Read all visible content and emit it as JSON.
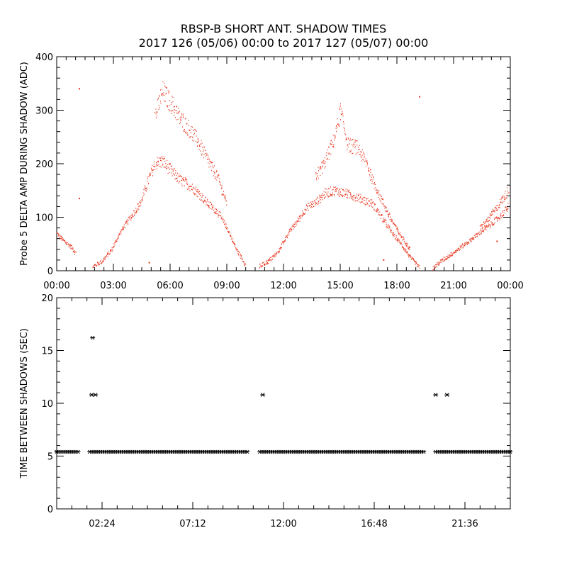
{
  "header": {
    "title": "RBSP-B SHORT ANT. SHADOW TIMES",
    "subtitle": "2017 126 (05/06) 00:00 to 2017 127 (05/07) 00:00"
  },
  "chart_data": [
    {
      "type": "scatter",
      "ylabel": "Probe 5 DELTA AMP DURING SHADOW (ADC)",
      "xlabel": "",
      "x_unit": "hours",
      "xlim": [
        0,
        24
      ],
      "ylim": [
        0,
        400
      ],
      "yticks": [
        0,
        100,
        200,
        300,
        400
      ],
      "xticks": [
        0,
        3,
        6,
        9,
        12,
        15,
        18,
        21,
        24
      ],
      "xtick_labels": [
        "00:00",
        "03:00",
        "06:00",
        "09:00",
        "12:00",
        "15:00",
        "18:00",
        "21:00",
        "00:00"
      ],
      "color": "#e8341c",
      "series": [
        {
          "values": [
            [
              0.0,
              70
            ],
            [
              0.25,
              60
            ],
            [
              0.5,
              52
            ],
            [
              0.75,
              45
            ],
            [
              1.0,
              32
            ],
            [
              1.9,
              8
            ],
            [
              2.4,
              18
            ],
            [
              2.9,
              40
            ],
            [
              3.4,
              75
            ],
            [
              3.9,
              100
            ],
            [
              4.4,
              125
            ],
            [
              4.9,
              175
            ],
            [
              5.2,
              200
            ],
            [
              5.6,
              205
            ],
            [
              6.0,
              188
            ],
            [
              6.5,
              170
            ],
            [
              7.0,
              160
            ],
            [
              7.5,
              145
            ],
            [
              8.0,
              125
            ],
            [
              8.5,
              110
            ],
            [
              9.0,
              80
            ],
            [
              9.5,
              40
            ],
            [
              10.0,
              10
            ],
            [
              5.2,
              290
            ],
            [
              5.6,
              335
            ],
            [
              6.0,
              315
            ],
            [
              6.5,
              285
            ],
            [
              7.0,
              265
            ],
            [
              7.5,
              240
            ],
            [
              8.0,
              205
            ],
            [
              8.5,
              175
            ],
            [
              9.0,
              125
            ],
            [
              10.7,
              8
            ],
            [
              11.2,
              18
            ],
            [
              11.7,
              35
            ],
            [
              12.2,
              68
            ],
            [
              12.7,
              92
            ],
            [
              13.2,
              118
            ],
            [
              13.7,
              128
            ],
            [
              14.2,
              145
            ],
            [
              14.7,
              150
            ],
            [
              15.2,
              145
            ],
            [
              15.7,
              140
            ],
            [
              16.2,
              133
            ],
            [
              16.7,
              125
            ],
            [
              17.2,
              100
            ],
            [
              17.7,
              72
            ],
            [
              18.2,
              50
            ],
            [
              18.7,
              25
            ],
            [
              19.2,
              5
            ],
            [
              13.7,
              175
            ],
            [
              14.2,
              205
            ],
            [
              14.7,
              250
            ],
            [
              15.0,
              300
            ],
            [
              15.4,
              235
            ],
            [
              15.9,
              230
            ],
            [
              16.4,
              200
            ],
            [
              16.7,
              170
            ],
            [
              17.2,
              130
            ],
            [
              17.7,
              95
            ],
            [
              18.2,
              65
            ],
            [
              18.7,
              40
            ],
            [
              19.9,
              5
            ],
            [
              20.4,
              20
            ],
            [
              20.9,
              32
            ],
            [
              21.4,
              45
            ],
            [
              21.9,
              58
            ],
            [
              22.4,
              72
            ],
            [
              22.9,
              85
            ],
            [
              23.4,
              100
            ],
            [
              23.9,
              120
            ],
            [
              22.4,
              80
            ],
            [
              22.9,
              100
            ],
            [
              23.4,
              125
            ],
            [
              23.9,
              150
            ],
            [
              1.2,
              340
            ],
            [
              4.9,
              15
            ],
            [
              19.2,
              325
            ],
            [
              23.3,
              55
            ],
            [
              17.3,
              20
            ],
            [
              1.2,
              135
            ]
          ]
        }
      ]
    },
    {
      "type": "scatter",
      "ylabel": "TIME BETWEEN SHADOWS (SEC)",
      "xlabel": "",
      "x_unit": "hours",
      "xlim": [
        0,
        24
      ],
      "ylim": [
        0,
        20
      ],
      "yticks": [
        0,
        5,
        10,
        15,
        20
      ],
      "xticks": [
        2.4,
        7.2,
        12.0,
        16.8,
        21.6
      ],
      "xtick_labels": [
        "02:24",
        "07:12",
        "12:00",
        "16:48",
        "21:36"
      ],
      "color": "#000000",
      "marker": "*",
      "baseline": 5.4,
      "baseline_segments": [
        [
          0.0,
          1.15
        ],
        [
          1.75,
          10.1
        ],
        [
          10.75,
          19.45
        ],
        [
          20.05,
          24.0
        ]
      ],
      "outliers": [
        [
          1.9,
          16.2
        ],
        [
          1.85,
          10.8
        ],
        [
          2.05,
          10.8
        ],
        [
          10.9,
          10.8
        ],
        [
          20.05,
          10.8
        ],
        [
          20.65,
          10.8
        ]
      ]
    }
  ]
}
